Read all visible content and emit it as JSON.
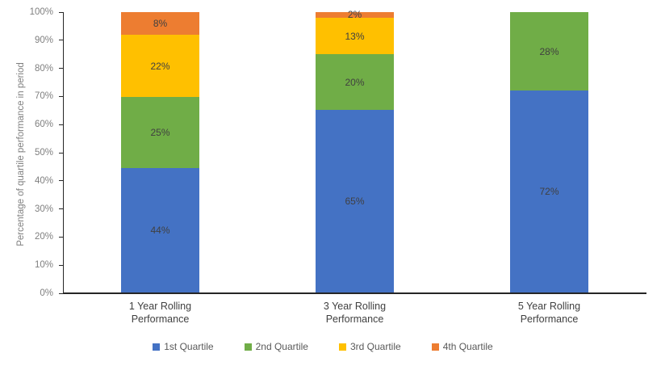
{
  "chart_data": {
    "type": "bar",
    "stacked": true,
    "title": "",
    "xlabel": "",
    "ylabel": "Percentage of quartile performance in period",
    "ylim": [
      0,
      100
    ],
    "grid": false,
    "legend_position": "bottom",
    "ytick_labels": [
      "0%",
      "10%",
      "20%",
      "30%",
      "40%",
      "50%",
      "60%",
      "70%",
      "80%",
      "90%",
      "100%"
    ],
    "categories": [
      "1 Year Rolling Performance",
      "3 Year Rolling Performance",
      "5 Year Rolling Performance"
    ],
    "series": [
      {
        "name": "1st Quartile",
        "color": "#4472C4",
        "values": [
          44,
          65,
          72
        ]
      },
      {
        "name": "2nd Quartile",
        "color": "#70AD47",
        "values": [
          25,
          20,
          28
        ]
      },
      {
        "name": "3rd Quartile",
        "color": "#FFC000",
        "values": [
          22,
          13,
          0
        ]
      },
      {
        "name": "4th Quartile",
        "color": "#ED7D31",
        "values": [
          8,
          2,
          0
        ]
      }
    ],
    "data_labels": [
      "44%",
      "25%",
      "22%",
      "8%",
      "65%",
      "20%",
      "13%",
      "2%",
      "72%",
      "28%"
    ],
    "data_label_suffix": "%"
  },
  "colors": {
    "axis_line": "#262626",
    "tick_text": "#7F7F7F",
    "category_text": "#3F3F3F",
    "legend_text": "#595959",
    "data_label_text": "#404040",
    "background": "#FFFFFF"
  }
}
